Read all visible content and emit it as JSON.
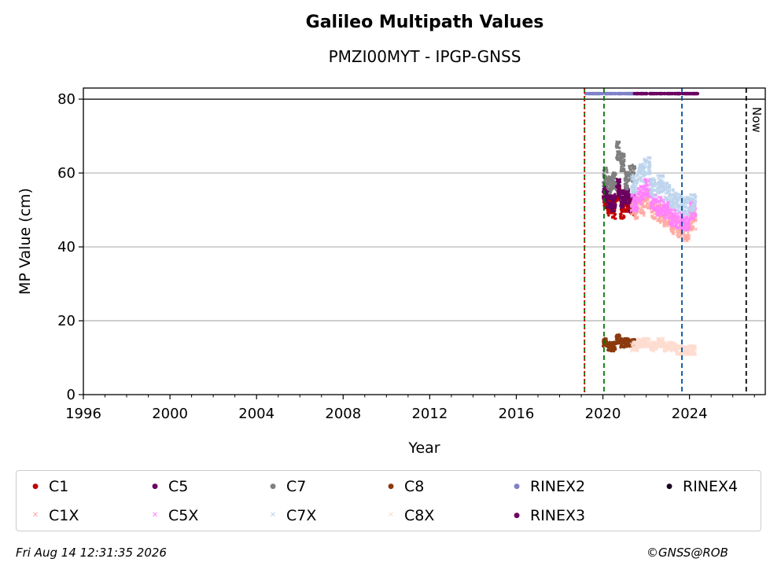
{
  "chart_data": {
    "type": "scatter",
    "title": "Galileo Multipath Values",
    "subtitle": "PMZI00MYT - IPGP-GNSS",
    "xlabel": "Year",
    "ylabel": "MP Value (cm)",
    "xlim": [
      1996,
      2027.5
    ],
    "ylim": [
      0,
      83
    ],
    "xticks": [
      "1996",
      "2000",
      "2004",
      "2008",
      "2012",
      "2016",
      "2020",
      "2024"
    ],
    "yticks": [
      "0",
      "20",
      "40",
      "60",
      "80"
    ],
    "grid": "horizontal",
    "legend_position": "bottom",
    "now_label": "Now",
    "reference_line_y": 80,
    "vertical_lines": [
      {
        "x": 2019.15,
        "color": "#007a00",
        "style": "dashed"
      },
      {
        "x": 2019.15,
        "color": "#cc0000",
        "style": "dotted"
      },
      {
        "x": 2020.05,
        "color": "#007a00",
        "style": "dashed"
      },
      {
        "x": 2023.65,
        "color": "#0050a0",
        "style": "dashed"
      },
      {
        "x": 2026.62,
        "color": "#000000",
        "style": "dashed"
      }
    ],
    "series": [
      {
        "name": "C1",
        "color": "#c00000",
        "marker": "dot",
        "x": [
          2020.0,
          2020.2,
          2020.4,
          2020.6,
          2020.8,
          2021.0,
          2021.2
        ],
        "y": [
          53,
          51,
          50,
          55,
          50,
          52,
          51
        ]
      },
      {
        "name": "C5",
        "color": "#6a0060",
        "marker": "dot",
        "x": [
          2020.0,
          2020.2,
          2020.4,
          2020.6,
          2020.8,
          2021.0,
          2021.2
        ],
        "y": [
          55,
          53,
          52,
          56,
          53,
          54,
          52
        ]
      },
      {
        "name": "C7",
        "color": "#7f7f7f",
        "marker": "dot",
        "x": [
          2020.0,
          2020.2,
          2020.4,
          2020.6,
          2020.8,
          2021.0,
          2021.2
        ],
        "y": [
          59,
          57,
          58,
          66,
          63,
          58,
          60
        ]
      },
      {
        "name": "C8",
        "color": "#8b3a0e",
        "marker": "dot",
        "x": [
          2020.0,
          2020.2,
          2020.4,
          2020.6,
          2020.8,
          2021.0,
          2021.2
        ],
        "y": [
          14,
          13,
          13,
          15,
          14,
          14,
          14
        ]
      },
      {
        "name": "RINEX2",
        "color": "#8080c8",
        "marker": "dot",
        "x": [
          2019.2,
          2019.6,
          2020.0,
          2020.4,
          2020.8,
          2021.2
        ],
        "y": [
          81.5,
          81.5,
          81.5,
          81.5,
          81.5,
          81.5
        ]
      },
      {
        "name": "RINEX4",
        "color": "#1a0020",
        "marker": "dot",
        "x": [],
        "y": []
      },
      {
        "name": "C1X",
        "color": "#ffa8a0",
        "marker": "x",
        "x": [
          2021.3,
          2021.6,
          2021.9,
          2022.2,
          2022.5,
          2022.8,
          2023.1,
          2023.4,
          2023.7,
          2024.0
        ],
        "y": [
          50,
          51,
          53,
          50,
          49,
          48,
          46,
          45,
          44,
          47
        ]
      },
      {
        "name": "C5X",
        "color": "#ff80ff",
        "marker": "x",
        "x": [
          2021.3,
          2021.6,
          2021.9,
          2022.2,
          2022.5,
          2022.8,
          2023.1,
          2023.4,
          2023.7,
          2024.0
        ],
        "y": [
          52,
          54,
          56,
          52,
          51,
          50,
          48,
          47,
          47,
          50
        ]
      },
      {
        "name": "C7X",
        "color": "#bcd4ec",
        "marker": "x",
        "x": [
          2021.3,
          2021.6,
          2021.9,
          2022.2,
          2022.5,
          2022.8,
          2023.1,
          2023.4,
          2023.7,
          2024.0
        ],
        "y": [
          57,
          60,
          62,
          56,
          57,
          55,
          53,
          52,
          51,
          52
        ]
      },
      {
        "name": "C8X",
        "color": "#ffdcd0",
        "marker": "x",
        "x": [
          2021.3,
          2021.6,
          2021.9,
          2022.2,
          2022.5,
          2022.8,
          2023.1,
          2023.4,
          2023.7,
          2024.0
        ],
        "y": [
          13,
          14,
          14,
          13,
          14,
          13,
          13,
          12,
          12,
          12
        ]
      },
      {
        "name": "RINEX3",
        "color": "#6a0060",
        "marker": "dot",
        "x": [
          2021.4,
          2021.8,
          2022.2,
          2022.6,
          2023.0,
          2023.4,
          2023.8,
          2024.1
        ],
        "y": [
          81.5,
          81.5,
          81.5,
          81.5,
          81.5,
          81.5,
          81.5,
          81.5
        ]
      }
    ]
  },
  "footer": {
    "timestamp": "Fri Aug 14 12:31:35 2026",
    "credit": "©GNSS@ROB"
  }
}
